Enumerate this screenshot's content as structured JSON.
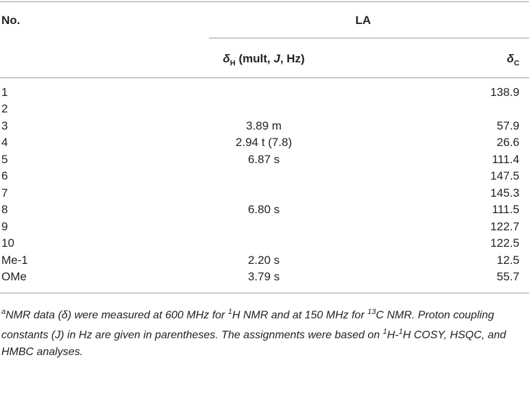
{
  "header": {
    "no": "No.",
    "group": "LA",
    "col_h": [
      "δ",
      "H",
      " (mult, ",
      "J",
      ", Hz)"
    ],
    "col_c": [
      "δ",
      "C"
    ]
  },
  "table": {
    "rows": [
      [
        "1",
        null,
        "138.9"
      ],
      [
        "2",
        null,
        null
      ],
      [
        "3",
        "3.89 m",
        "57.9"
      ],
      [
        "4",
        "2.94 t (7.8)",
        "26.6"
      ],
      [
        "5",
        "6.87 s",
        "111.4"
      ],
      [
        "6",
        null,
        "147.5"
      ],
      [
        "7",
        null,
        "145.3"
      ],
      [
        "8",
        "6.80 s",
        "111.5"
      ],
      [
        "9",
        null,
        "122.7"
      ],
      [
        "10",
        null,
        "122.5"
      ],
      [
        "Me-1",
        "2.20 s",
        "12.5"
      ],
      [
        "OMe",
        "3.79 s",
        "55.7"
      ]
    ]
  },
  "footnote": [
    "a",
    "NMR data (δ) were measured at 600 MHz for ",
    "1",
    "H NMR and at 150 MHz for ",
    "13",
    "C NMR. Proton coupling constants (J) in Hz are given in parentheses. The assignments were based on ",
    "1",
    "H-",
    "1",
    "H COSY, HSQC, and HMBC analyses."
  ]
}
